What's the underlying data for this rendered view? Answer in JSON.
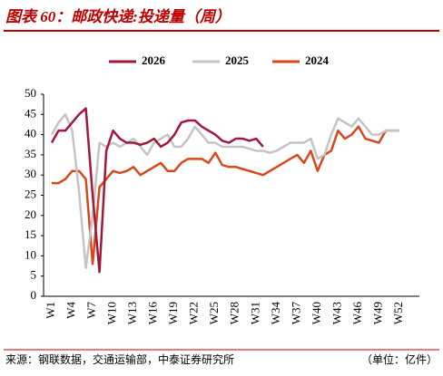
{
  "chart_data": {
    "type": "line",
    "title": "图表 60：邮政快递:投递量（周）",
    "source": "来源：钢联数据，交通运输部，中泰证券研究所",
    "unit": "（单位：亿件）",
    "categories": [
      "W1",
      null,
      null,
      "W4",
      null,
      null,
      "W7",
      null,
      null,
      "W10",
      null,
      null,
      "W13",
      null,
      null,
      "W16",
      null,
      null,
      "W19",
      null,
      null,
      "W22",
      null,
      null,
      "W25",
      null,
      null,
      "W28",
      null,
      null,
      "W31",
      null,
      null,
      "W34",
      null,
      null,
      "W37",
      null,
      null,
      "W40",
      null,
      null,
      "W43",
      null,
      null,
      "W46",
      null,
      null,
      "W49",
      null,
      null,
      "W52"
    ],
    "series": [
      {
        "name": "2026",
        "color": "#a3173a",
        "values": [
          38,
          41,
          41,
          43,
          45,
          46.5,
          25,
          6,
          36,
          41,
          39,
          38,
          38,
          37.5,
          38,
          39,
          37,
          38,
          40,
          43,
          43.5,
          43.5,
          42,
          41,
          40,
          38.5,
          38,
          39,
          39,
          38.5,
          39,
          37,
          null,
          null,
          null,
          null,
          null,
          null,
          null,
          null,
          null,
          null,
          null,
          null,
          null,
          null,
          null,
          null,
          null,
          null,
          null,
          null
        ]
      },
      {
        "name": "2025",
        "color": "#c4c4c4",
        "values": [
          40,
          43,
          45,
          41,
          26,
          7,
          20,
          38,
          37,
          38,
          37,
          38,
          39,
          37,
          35,
          38,
          39,
          40,
          37,
          37,
          39,
          42,
          40,
          38,
          38,
          37,
          37,
          37,
          37,
          36.5,
          36,
          36,
          35.5,
          36,
          37,
          38,
          38,
          38,
          39,
          34,
          35,
          40,
          44,
          43,
          42,
          44,
          42,
          40,
          40,
          41,
          41,
          41
        ]
      },
      {
        "name": "2024",
        "color": "#d9481a",
        "values": [
          28,
          28,
          29,
          31,
          31,
          29,
          8,
          27,
          29,
          31,
          30.5,
          31,
          32,
          30,
          31,
          32,
          33,
          31,
          31,
          33,
          34,
          34,
          34,
          33,
          35.5,
          32.5,
          32,
          32,
          31.5,
          31,
          30.5,
          30,
          31,
          32,
          33,
          34,
          35,
          33,
          36,
          31,
          35,
          36,
          41,
          39,
          40,
          42,
          39,
          38.5,
          38,
          41,
          41,
          41
        ]
      }
    ],
    "ylim": [
      0,
      50
    ],
    "yticks": [
      0,
      5,
      10,
      15,
      20,
      25,
      30,
      35,
      40,
      45,
      50
    ]
  }
}
